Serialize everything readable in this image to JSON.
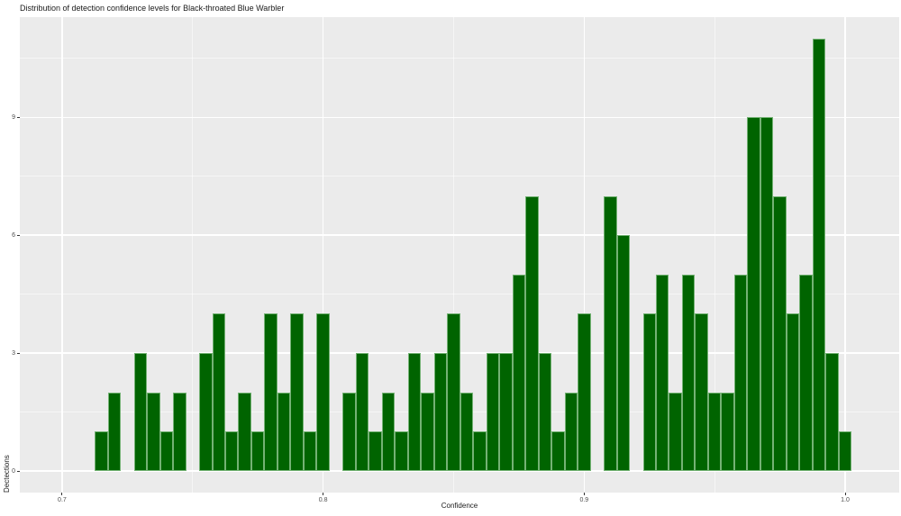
{
  "chart_data": {
    "type": "bar",
    "subtype": "histogram",
    "title": "Distribution of detection confidence levels for Black-throated Blue Warbler",
    "xlabel": "Confidence",
    "ylabel": "Dectections",
    "bin_width": 0.005,
    "bin_centers": [
      0.715,
      0.72,
      0.725,
      0.73,
      0.735,
      0.74,
      0.745,
      0.75,
      0.755,
      0.76,
      0.765,
      0.77,
      0.775,
      0.78,
      0.785,
      0.79,
      0.795,
      0.8,
      0.805,
      0.81,
      0.815,
      0.82,
      0.825,
      0.83,
      0.835,
      0.84,
      0.845,
      0.85,
      0.855,
      0.86,
      0.865,
      0.87,
      0.875,
      0.88,
      0.885,
      0.89,
      0.895,
      0.9,
      0.905,
      0.91,
      0.915,
      0.92,
      0.925,
      0.93,
      0.935,
      0.94,
      0.945,
      0.95,
      0.955,
      0.96,
      0.965,
      0.97,
      0.975,
      0.98,
      0.985,
      0.99,
      0.995,
      1.0
    ],
    "values": [
      1,
      2,
      0,
      3,
      2,
      1,
      2,
      0,
      3,
      4,
      1,
      2,
      1,
      4,
      2,
      4,
      1,
      4,
      0,
      2,
      3,
      1,
      2,
      1,
      3,
      2,
      3,
      4,
      2,
      1,
      3,
      3,
      5,
      7,
      3,
      1,
      2,
      4,
      0,
      7,
      6,
      0,
      4,
      5,
      2,
      5,
      4,
      2,
      2,
      5,
      9,
      9,
      7,
      4,
      5,
      11,
      3,
      1
    ],
    "x_axis": {
      "ticks": [
        0.7,
        0.8,
        0.9,
        1.0
      ],
      "tick_labels": [
        "0.7",
        "0.8",
        "0.9",
        "1.0"
      ],
      "minor_ticks": [
        0.75,
        0.85,
        0.95
      ],
      "range": [
        0.6838,
        1.0207
      ]
    },
    "y_axis": {
      "ticks": [
        0,
        3,
        6,
        9
      ],
      "tick_labels": [
        "0",
        "3",
        "6",
        "9"
      ],
      "minor_ticks": [
        1.5,
        4.5,
        7.5,
        10.5
      ],
      "range": [
        -0.55,
        11.55
      ]
    },
    "grid": true,
    "legend": null,
    "colors": {
      "bar_fill": "#006400",
      "bar_border": "#74b274",
      "panel_background": "#ebebeb",
      "grid": "#ffffff",
      "tick_label": "#4d4d4d",
      "text": "#1a1a1a"
    }
  }
}
